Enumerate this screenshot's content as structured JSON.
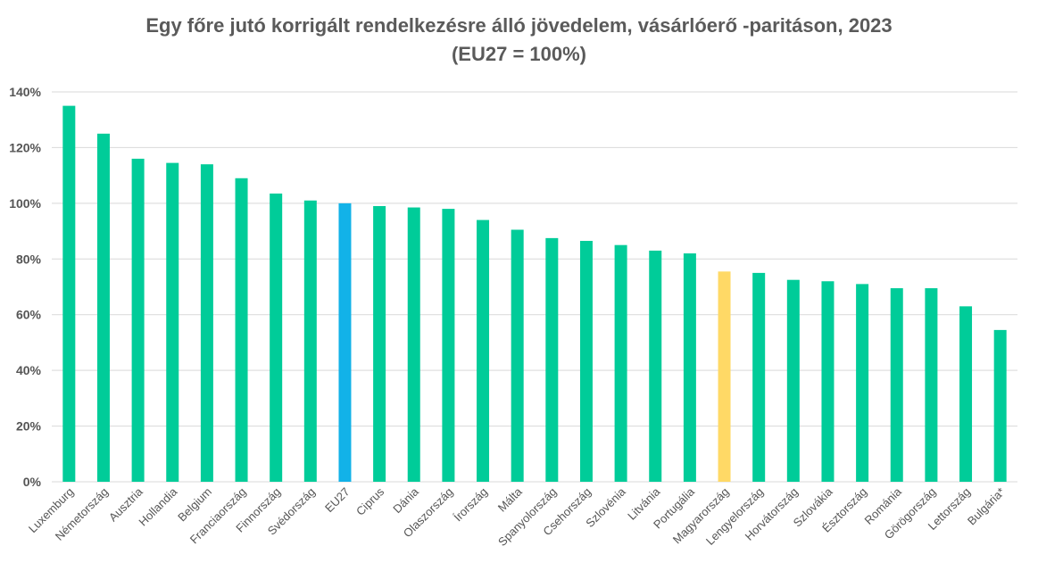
{
  "chart_data": {
    "type": "bar",
    "title": "Egy főre jutó korrigált rendelkezésre álló jövedelem, vásárlóerő -paritáson, 2023",
    "subtitle": "(EU27 = 100%)",
    "xlabel": "",
    "ylabel": "",
    "ylim": [
      0,
      140
    ],
    "yticks": [
      "0%",
      "20%",
      "40%",
      "60%",
      "80%",
      "100%",
      "120%",
      "140%"
    ],
    "grid": true,
    "categories": [
      "Luxemburg",
      "Németország",
      "Ausztria",
      "Hollandia",
      "Belgium",
      "Franciaország",
      "Finnország",
      "Svédország",
      "EU27",
      "Ciprus",
      "Dánia",
      "Olaszország",
      "Írország",
      "Málta",
      "Spanyolország",
      "Csehország",
      "Szlovénia",
      "Litvánia",
      "Portugália",
      "Magyarország",
      "Lengyelország",
      "Horvátország",
      "Szlovákia",
      "Észtország",
      "Románia",
      "Görögország",
      "Lettország",
      "Bulgária*"
    ],
    "values": [
      135,
      125,
      116,
      114.5,
      114,
      109,
      103.5,
      101,
      100,
      99,
      98.5,
      98,
      94,
      90.5,
      87.5,
      86.5,
      85,
      83,
      82,
      75.5,
      75,
      72.5,
      72,
      71,
      69.5,
      69.5,
      63,
      54.5
    ],
    "colors": {
      "default": "#00cc99",
      "EU27": "#12b2e8",
      "Magyarország": "#ffd966",
      "grid": "#d9d9d9",
      "text": "#555555"
    }
  }
}
